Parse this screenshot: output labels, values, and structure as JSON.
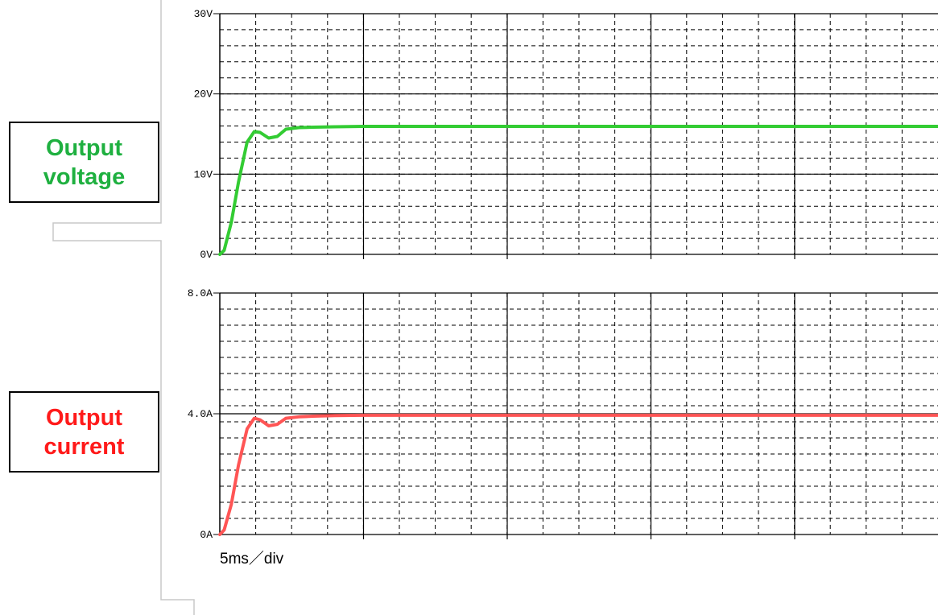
{
  "labels": {
    "voltage": {
      "line1": "Output",
      "line2": "voltage",
      "color": "#1fb040"
    },
    "current": {
      "line1": "Output",
      "line2": "current",
      "color": "#ff1a1a"
    }
  },
  "time_scale": "5ms／div",
  "chart_data": [
    {
      "type": "line",
      "x_unit": "ms",
      "xlim": [
        0,
        50
      ],
      "ylim": [
        0,
        30
      ],
      "yticks": [
        "0V",
        "10V",
        "20V",
        "30V"
      ],
      "ytick_values": [
        0,
        10,
        20,
        30
      ],
      "grid": true,
      "series": [
        {
          "color": "#33cc33",
          "x": [
            0,
            0.3,
            0.8,
            1.3,
            1.9,
            2.4,
            2.8,
            3.4,
            4.0,
            4.6,
            5.5,
            6.5,
            8,
            10,
            15,
            20,
            25,
            30,
            35,
            40,
            45,
            50
          ],
          "y": [
            0,
            0.5,
            4,
            9,
            14,
            15.3,
            15.2,
            14.5,
            14.7,
            15.6,
            15.8,
            15.85,
            15.9,
            15.95,
            15.95,
            15.95,
            15.95,
            15.95,
            15.95,
            15.95,
            15.95,
            15.95
          ]
        }
      ]
    },
    {
      "type": "line",
      "x_unit": "ms",
      "xlim": [
        0,
        50
      ],
      "ylim": [
        0,
        8
      ],
      "yticks": [
        "0A",
        "4.0A",
        "8.0A"
      ],
      "ytick_values": [
        0,
        4,
        8
      ],
      "grid": true,
      "series": [
        {
          "color": "#ff5555",
          "x": [
            0,
            0.3,
            0.8,
            1.3,
            1.9,
            2.4,
            2.8,
            3.4,
            4.0,
            4.6,
            5.5,
            6.5,
            8,
            10,
            15,
            20,
            25,
            30,
            35,
            40,
            45,
            50
          ],
          "y": [
            0,
            0.15,
            1.0,
            2.3,
            3.5,
            3.85,
            3.8,
            3.6,
            3.65,
            3.85,
            3.9,
            3.92,
            3.94,
            3.95,
            3.95,
            3.95,
            3.95,
            3.95,
            3.95,
            3.95,
            3.95,
            3.95
          ]
        }
      ]
    }
  ]
}
